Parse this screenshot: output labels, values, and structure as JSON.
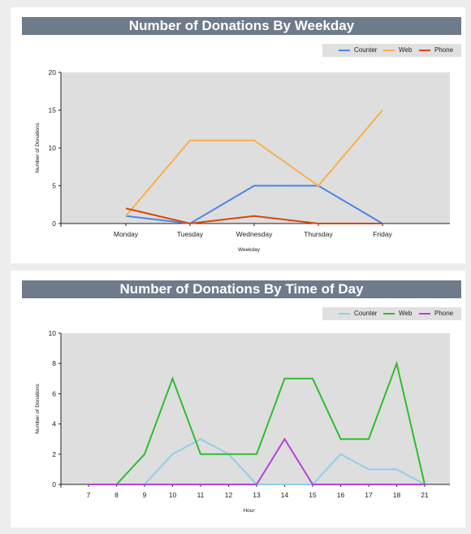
{
  "chart_data": [
    {
      "type": "line",
      "title": "Number of Donations By Weekday",
      "xlabel": "Weekday",
      "ylabel": "Number of Donations",
      "categories": [
        "Monday",
        "Tuesday",
        "Wednesday",
        "Thursday",
        "Friday"
      ],
      "yticks": [
        0,
        5,
        10,
        15,
        20
      ],
      "ylim": [
        0,
        20
      ],
      "grid": false,
      "legend_position": "top-right",
      "series": [
        {
          "name": "Counter",
          "color": "#4a86e8",
          "values": [
            1,
            0,
            5,
            5,
            0
          ]
        },
        {
          "name": "Web",
          "color": "#f6b14a",
          "values": [
            1,
            11,
            11,
            5,
            15
          ]
        },
        {
          "name": "Phone",
          "color": "#d9460b",
          "values": [
            2,
            0,
            1,
            0,
            0
          ]
        }
      ]
    },
    {
      "type": "line",
      "title": "Number of Donations By Time of Day",
      "xlabel": "Hour",
      "ylabel": "Number of Donations",
      "categories": [
        "7",
        "8",
        "9",
        "10",
        "11",
        "12",
        "13",
        "14",
        "15",
        "16",
        "17",
        "18",
        "21"
      ],
      "yticks": [
        0,
        2,
        4,
        6,
        8,
        10
      ],
      "ylim": [
        0,
        10
      ],
      "grid": false,
      "legend_position": "top-right",
      "series": [
        {
          "name": "Counter",
          "color": "#8ecfe8",
          "values": [
            0,
            0,
            0,
            2,
            3,
            2,
            0,
            0,
            0,
            2,
            1,
            1,
            0
          ]
        },
        {
          "name": "Web",
          "color": "#2ebd2e",
          "values": [
            0,
            0,
            2,
            7,
            2,
            2,
            2,
            7,
            7,
            3,
            3,
            8,
            0
          ]
        },
        {
          "name": "Phone",
          "color": "#b045d8",
          "values": [
            0,
            0,
            0,
            0,
            0,
            0,
            0,
            3,
            0,
            0,
            0,
            0,
            0
          ]
        }
      ]
    }
  ]
}
